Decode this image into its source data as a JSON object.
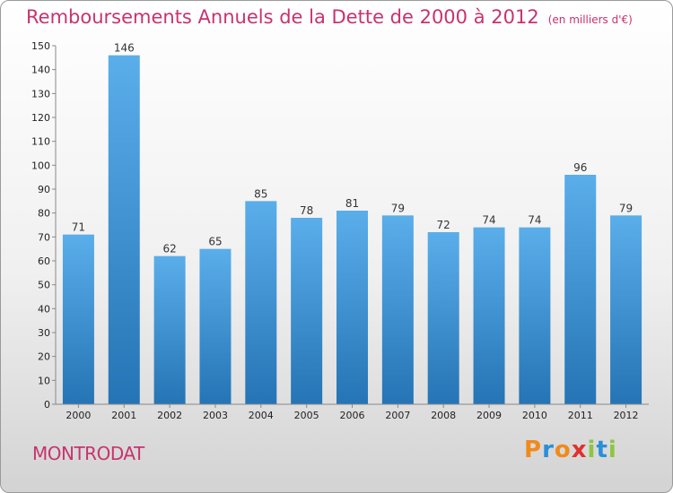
{
  "header": {
    "title": "Remboursements Annuels de la Dette de 2000 à 2012",
    "subtitle": "(en milliers d'€)"
  },
  "footer": {
    "city": "MONTRODAT",
    "brand": "Proxiti"
  },
  "colors": {
    "title": "#c8336e",
    "bar_light": "#5aaeea",
    "bar_dark": "#2574b5"
  },
  "chart_data": {
    "type": "bar",
    "title": "Remboursements Annuels de la Dette de 2000 à 2012",
    "subtitle": "(en milliers d'€)",
    "categories": [
      "2000",
      "2001",
      "2002",
      "2003",
      "2004",
      "2005",
      "2006",
      "2007",
      "2008",
      "2009",
      "2010",
      "2011",
      "2012"
    ],
    "values": [
      71,
      146,
      62,
      65,
      85,
      78,
      81,
      79,
      72,
      74,
      74,
      96,
      79
    ],
    "ylim": [
      0,
      150
    ],
    "yticks": [
      0,
      10,
      20,
      30,
      40,
      50,
      60,
      70,
      80,
      90,
      100,
      110,
      120,
      130,
      140,
      150
    ],
    "grid": false,
    "data_labels": true
  }
}
